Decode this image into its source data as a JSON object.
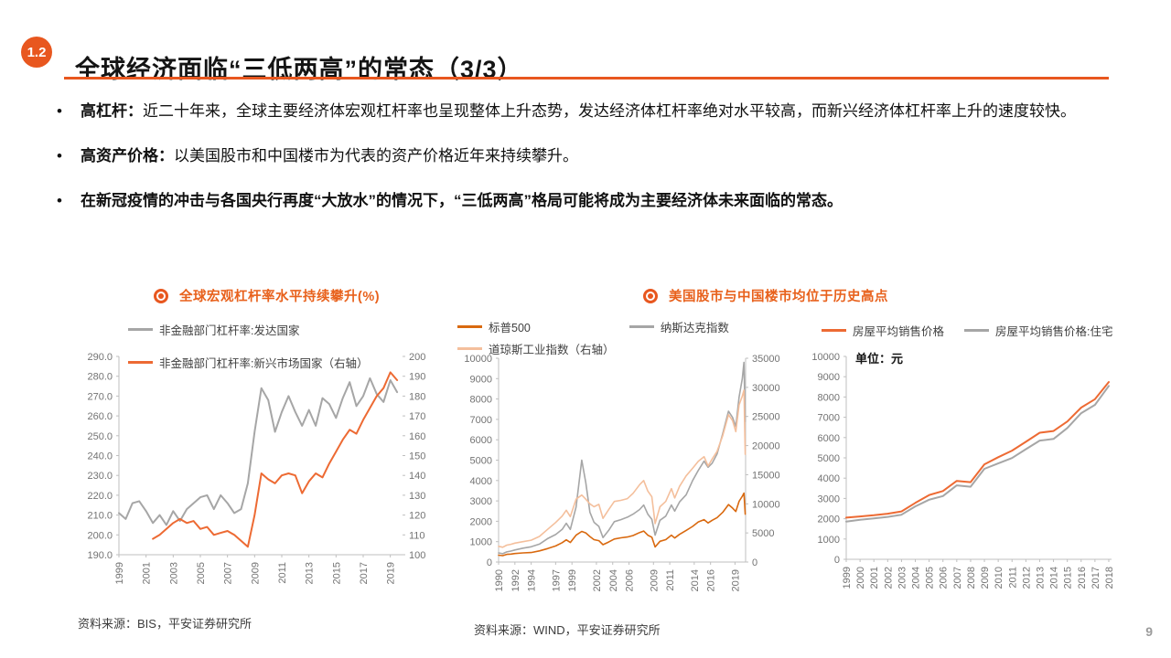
{
  "page_number": "9",
  "header": {
    "badge": "1.2",
    "title": "全球经济面临“三低两高”的常态（3/3）"
  },
  "bullets": [
    {
      "label": "高杠杆：",
      "text": "近二十年来，全球主要经济体宏观杠杆率也呈现整体上升态势，发达经济体杠杆率绝对水平较高，而新兴经济体杠杆率上升的速度较快。"
    },
    {
      "label": "高资产价格：",
      "text": "以美国股市和中国楼市为代表的资产价格近年来持续攀升。"
    },
    {
      "label": "",
      "text": "在新冠疫情的冲击与各国央行再度“大放水”的情况下，“三低两高”格局可能将成为主要经济体未来面临的常态。"
    }
  ],
  "sources": {
    "left": "资料来源：BIS，平安证券研究所",
    "right": "资料来源：WIND，平安证券研究所"
  },
  "colors": {
    "accent": "#E8571F",
    "axis_line": "#BFBFBF",
    "axis_text": "#737373"
  },
  "chart_data": [
    {
      "id": "global-leverage",
      "type": "line",
      "title": "全球宏观杠杆率水平持续攀升(%)",
      "x_range": [
        1999,
        2019.9
      ],
      "x": [
        1999,
        1999.5,
        2000,
        2000.5,
        2001,
        2001.5,
        2002,
        2002.5,
        2003,
        2003.5,
        2004,
        2004.5,
        2005,
        2005.5,
        2006,
        2006.5,
        2007,
        2007.5,
        2008,
        2008.5,
        2009,
        2009.5,
        2010,
        2010.5,
        2011,
        2011.5,
        2012,
        2012.5,
        2013,
        2013.5,
        2014,
        2014.5,
        2015,
        2015.5,
        2016,
        2016.5,
        2017,
        2017.5,
        2018,
        2018.5,
        2019,
        2019.5
      ],
      "x_ticks": [
        1999,
        2001,
        2003,
        2005,
        2007,
        2009,
        2011,
        2013,
        2015,
        2017,
        2019
      ],
      "left_axis": {
        "min": 190,
        "max": 290,
        "step": 10,
        "decimals": 1
      },
      "right_axis": {
        "min": 100,
        "max": 200,
        "step": 10,
        "decimals": 0
      },
      "series": [
        {
          "name": "非金融部门杠杆率:发达国家",
          "axis": "left",
          "color": "#A6A6A6",
          "values": [
            211,
            208,
            216,
            217,
            212,
            206,
            210,
            205,
            212,
            207,
            213,
            216,
            219,
            220,
            213,
            220,
            216,
            211,
            213,
            226,
            252,
            274,
            268,
            252,
            262,
            270,
            262,
            255,
            263,
            255,
            269,
            266,
            259,
            269,
            277,
            265,
            270,
            279,
            271,
            267,
            278,
            272
          ]
        },
        {
          "name": "非金融部门杠杆率:新兴市场国家（右轴）",
          "axis": "right",
          "color": "#ED6A33",
          "values": [
            null,
            null,
            null,
            null,
            null,
            108,
            110,
            113,
            116,
            118,
            116,
            117,
            113,
            114,
            110,
            111,
            112,
            110,
            107,
            104,
            120,
            141,
            138,
            136,
            140,
            141,
            140,
            131,
            137,
            141,
            139,
            146,
            152,
            158,
            163,
            161,
            168,
            174,
            180,
            184,
            192,
            188
          ]
        }
      ]
    },
    {
      "id": "us-stocks",
      "type": "line",
      "title": "美国股市与中国楼市均位于历史高点",
      "x_range": [
        1990,
        2020.3
      ],
      "x": [
        1990,
        1990.5,
        1991,
        1991.5,
        1992,
        1993,
        1994,
        1995,
        1996,
        1997,
        1997.8,
        1998.3,
        1998.8,
        1999.5,
        2000.2,
        2000.7,
        2001.2,
        2001.7,
        2002.3,
        2002.8,
        2003.5,
        2004.2,
        2005,
        2005.8,
        2006.5,
        2007.3,
        2007.8,
        2008.3,
        2008.8,
        2009.2,
        2009.8,
        2010.5,
        2011.2,
        2011.6,
        2012.2,
        2013,
        2013.8,
        2014.5,
        2015.2,
        2015.7,
        2016.2,
        2016.8,
        2017.5,
        2018.2,
        2018.7,
        2019.1,
        2019.5,
        2019.9,
        2020.1,
        2020.25
      ],
      "x_ticks": [
        1990,
        1992,
        1994,
        1997,
        1999,
        2002,
        2004,
        2006,
        2009,
        2011,
        2014,
        2016,
        2019
      ],
      "left_axis": {
        "min": 0,
        "max": 10000,
        "step": 1000,
        "decimals": 0
      },
      "right_axis": {
        "min": 0,
        "max": 35000,
        "step": 5000,
        "decimals": 0
      },
      "series": [
        {
          "name": "标普500",
          "axis": "left",
          "color": "#D9690F",
          "values": [
            335,
            315,
            375,
            390,
            415,
            450,
            465,
            545,
            660,
            790,
            950,
            1090,
            960,
            1320,
            1500,
            1430,
            1250,
            1100,
            1050,
            850,
            980,
            1130,
            1190,
            1230,
            1300,
            1450,
            1520,
            1320,
            1220,
            740,
            1020,
            1100,
            1320,
            1180,
            1360,
            1550,
            1750,
            1970,
            2080,
            1920,
            2050,
            2180,
            2440,
            2820,
            2650,
            2480,
            2980,
            3230,
            3380,
            2350
          ]
        },
        {
          "name": "纳斯达克指数",
          "axis": "left",
          "color": "#A6A6A6",
          "values": [
            450,
            410,
            500,
            540,
            590,
            680,
            750,
            880,
            1150,
            1350,
            1600,
            1900,
            1600,
            2700,
            5000,
            3900,
            2450,
            1950,
            1750,
            1200,
            1550,
            1980,
            2080,
            2200,
            2350,
            2580,
            2800,
            2350,
            2100,
            1320,
            2050,
            2250,
            2800,
            2500,
            2950,
            3300,
            4000,
            4500,
            4950,
            4650,
            4850,
            5300,
            6300,
            7400,
            7100,
            6650,
            8100,
            9000,
            9800,
            6900
          ]
        },
        {
          "name": "道琼斯工业指数（右轴）",
          "axis": "right",
          "color": "#F4BF9C",
          "values": [
            2700,
            2550,
            2900,
            3050,
            3250,
            3500,
            3750,
            4400,
            5600,
            6800,
            7900,
            8900,
            7800,
            10800,
            11500,
            10800,
            10000,
            9500,
            9900,
            7500,
            9000,
            10400,
            10600,
            10900,
            11800,
            13300,
            14000,
            12200,
            11200,
            6600,
            9500,
            10400,
            12600,
            11000,
            13000,
            14800,
            16100,
            17300,
            18100,
            16500,
            17700,
            19000,
            21700,
            25300,
            24300,
            22400,
            27000,
            28500,
            29500,
            18500
          ]
        }
      ]
    },
    {
      "id": "china-housing",
      "type": "line",
      "annotation": "单位：元",
      "x_range": [
        1999,
        2018.2
      ],
      "x": [
        1999,
        2000,
        2001,
        2002,
        2003,
        2004,
        2005,
        2006,
        2007,
        2008,
        2009,
        2010,
        2011,
        2012,
        2013,
        2014,
        2015,
        2016,
        2017,
        2018
      ],
      "x_ticks": [
        1999,
        2000,
        2001,
        2002,
        2003,
        2004,
        2005,
        2006,
        2007,
        2008,
        2009,
        2010,
        2011,
        2012,
        2013,
        2014,
        2015,
        2016,
        2017,
        2018
      ],
      "left_axis": {
        "min": 0,
        "max": 10000,
        "step": 1000,
        "decimals": 0
      },
      "series": [
        {
          "name": "房屋平均销售价格",
          "axis": "left",
          "color": "#ED6A33",
          "values": [
            2053,
            2112,
            2170,
            2250,
            2359,
            2778,
            3168,
            3367,
            3864,
            3800,
            4681,
            5032,
            5357,
            5791,
            6237,
            6323,
            6793,
            7476,
            7892,
            8737
          ]
        },
        {
          "name": "房屋平均销售价格:住宅",
          "axis": "left",
          "color": "#A6A6A6",
          "values": [
            1857,
            1948,
            2017,
            2092,
            2197,
            2608,
            2937,
            3119,
            3645,
            3576,
            4459,
            4725,
            4993,
            5430,
            5850,
            5933,
            6473,
            7203,
            7614,
            8544
          ]
        }
      ]
    }
  ]
}
